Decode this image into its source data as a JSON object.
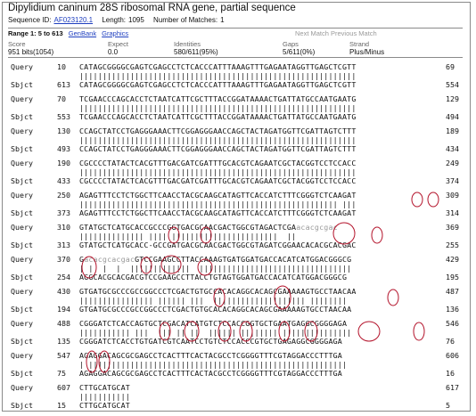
{
  "title": "Dipylidium caninum 28S ribosomal RNA gene, partial sequence",
  "meta": {
    "seqid_label": "Sequence ID:",
    "seqid": "AF023120.1",
    "length_label": "Length:",
    "length": "1095",
    "matches_label": "Number of Matches:",
    "matches": "1"
  },
  "range": {
    "label": "Range 1: 5 to 613",
    "genbank": "GenBank",
    "graphics": "Graphics",
    "next_match": "Next Match  Previous Match"
  },
  "stats": {
    "score_h": "Score",
    "score_v": "951 bits(1054)",
    "expect_h": "Expect",
    "expect_v": "0.0",
    "identities_h": "Identities",
    "identities_v": "580/611(95%)",
    "gaps_h": "Gaps",
    "gaps_v": "5/611(0%)",
    "strand_h": "Strand",
    "strand_v": "Plus/Minus"
  },
  "alignment": [
    {
      "q_label": "Query",
      "q_start": "10",
      "q_seq": "CATAGCGGGGCGAGTCGAGCCTCTCACCCATTTAAAGTTTGAGAATAGGTTGAGCTCGTT",
      "q_end": "69",
      "bars": "||||||||||||||||||||||||||||||||||||||||||||||||||||||||||||",
      "s_label": "Sbjct",
      "s_start": "613",
      "s_seq": "CATAGCGGGGCGAGTCGAGCCTCTCACCCATTTAAAGTTTGAGAATAGGTTGAGCTCGTT",
      "s_end": "554"
    },
    {
      "q_label": "Query",
      "q_start": "70",
      "q_seq": "TCGAACCCAGCACCTCTAATCATTCGCTTTACCGGATAAAACTGATTATGCCAATGAATG",
      "q_end": "129",
      "bars": "||||||||||||||||||||||||||||||||||||||||||||||||||||||||||||",
      "s_label": "Sbjct",
      "s_start": "553",
      "s_seq": "TCGAACCCAGCACCTCTAATCATTCGCTTTACCGGATAAAACTGATTATGCCAATGAATG",
      "s_end": "494"
    },
    {
      "q_label": "Query",
      "q_start": "130",
      "q_seq": "CCAGCTATCCTGAGGGAAACTTCGGAGGGAACCAGCTACTAGATGGTTCGATTAGTCTTT",
      "q_end": "189",
      "bars": "||||||||||||||||||||||||||||||||||||||||||||||||||||||||||||",
      "s_label": "Sbjct",
      "s_start": "493",
      "s_seq": "CCAGCTATCCTGAGGGAAACTTCGGAGGGAACCAGCTACTAGATGGTTCGATTAGTCTTT",
      "s_end": "434"
    },
    {
      "q_label": "Query",
      "q_start": "190",
      "q_seq": "CGCCCCTATACTCACGTTTGACGATCGATTTGCACGTCAGAATCGCTACGGTCCTCCACC",
      "q_end": "249",
      "bars": "||||||||||||||||||||||||||||||||||||||||||||||||||||||||||||",
      "s_label": "Sbjct",
      "s_start": "433",
      "s_seq": "CGCCCCTATACTCACGTTTGACGATCGATTTGCACGTCAGAATCGCTACGGTCCTCCACC",
      "s_end": "374"
    },
    {
      "q_label": "Query",
      "q_start": "250",
      "q_seq": "AGAGTTTCCTCTGGCTTCAACCTACGCAAGCATAGTTCACCATCTTTCGGGTCTCAAGAT",
      "q_end": "309",
      "bars": "|||||||||||||||||||||||||||||||||||||||||||||||||||||||| |||",
      "s_label": "Sbjct",
      "s_start": "373",
      "s_seq": "AGAGTTTCCTCTGGCTTCAACCTACGCAAGCATAGTTCACCATCTTTCGGGTCTCAAGAT",
      "s_end": "314"
    },
    {
      "q_label": "Query",
      "q_start": "310",
      "q_seq": "GTATGCTCATGCACCGCCCGGTGACGCAACGACTGGCGTAGACTCGA",
      "q_gray": "acacgcgac",
      "q_end": "369",
      "bars": "|||||||||||||| |||| |||||||||||||||||||||||  ||",
      "s_label": "Sbjct",
      "s_start": "313",
      "s_seq": "GTATGCTCATGCACC-GCCGATGACGCAACGACTGGCGTAGATCGGAACACACGCACGAC",
      "s_end": "255"
    },
    {
      "q_label": "Query",
      "q_start": "370",
      "q_pre": "G",
      "q_gray": "acacgcacgac",
      "q_seq": "GTCCGAAGCCTTACCAAAGTGATGGATGACCACATCATGGACGGGCG",
      "q_end": "429",
      "bars": "| |  |  |  |||||||||||||  |||||||||||||||||||||||||||||||||",
      "s_label": "Sbjct",
      "s_start": "254",
      "s_seq": "AGGCACGCACGACGTCCGAAGCCTTACCTGTAGTGGATGACCACATCATGGACGGGCG",
      "s_end": "195"
    },
    {
      "q_label": "Query",
      "q_start": "430",
      "q_seq": "GTGATGCGCCCGCCGGCCCTCGACTGTGCCACACAGGCACAGCGAAAAAGTGCCTAACAA",
      "q_end": "487",
      "bars": "|||||||||||||||| |||||| |||  |||||||||||||||||||| ||||||||",
      "s_label": "Sbjct",
      "s_start": "194",
      "s_seq": "GTGATGCGCCCGCCGGCCCTCGACTGTGCACACAGGCACAGCGAAAAAGTGCCTAACAA",
      "s_end": "136"
    },
    {
      "q_label": "Query",
      "q_start": "488",
      "q_seq": "CGGGATCTCACCAGTGCTCGACATCATGTCTCCACCGGTGCTGAATGAGGCGGGGAGA",
      "q_end": "546",
      "bars": "||||||||||| |||  ||| || ||  |||||| |||||||| |||||||||||||||",
      "s_label": "Sbjct",
      "s_start": "135",
      "s_seq": "CGGGATCTCACCTGTGATCGTCAATCCTGTCTCCACCCGTGCTGAGAGGCGGGGAGA",
      "s_end": "76"
    },
    {
      "q_label": "Query",
      "q_start": "547",
      "q_seq": "AGAGGACAGCGCGAGCCTCACTTTCACTACGCCTCGGGGTTTCGTAGGACCCTTTGA",
      "q_end": "606",
      "bars": "| ||||||||||||||||||||||||||||||||||||||||||||||||||||||||",
      "s_label": "Sbjct",
      "s_start": "75",
      "s_seq": "AGAGGACAGCGCGAGCCTCACTTTCACTACGCCTCGGGGTTTCGTAGGACCCTTTGA",
      "s_end": "16"
    },
    {
      "q_label": "Query",
      "q_start": "607",
      "q_seq": "CTTGCATGCAT",
      "q_end": "617",
      "bars": "|||||||||||",
      "s_label": "Sbjct",
      "s_start": "15",
      "s_seq": "CTTGCATGCAT",
      "s_end": "5"
    }
  ],
  "annotation_color": "#b3122a"
}
